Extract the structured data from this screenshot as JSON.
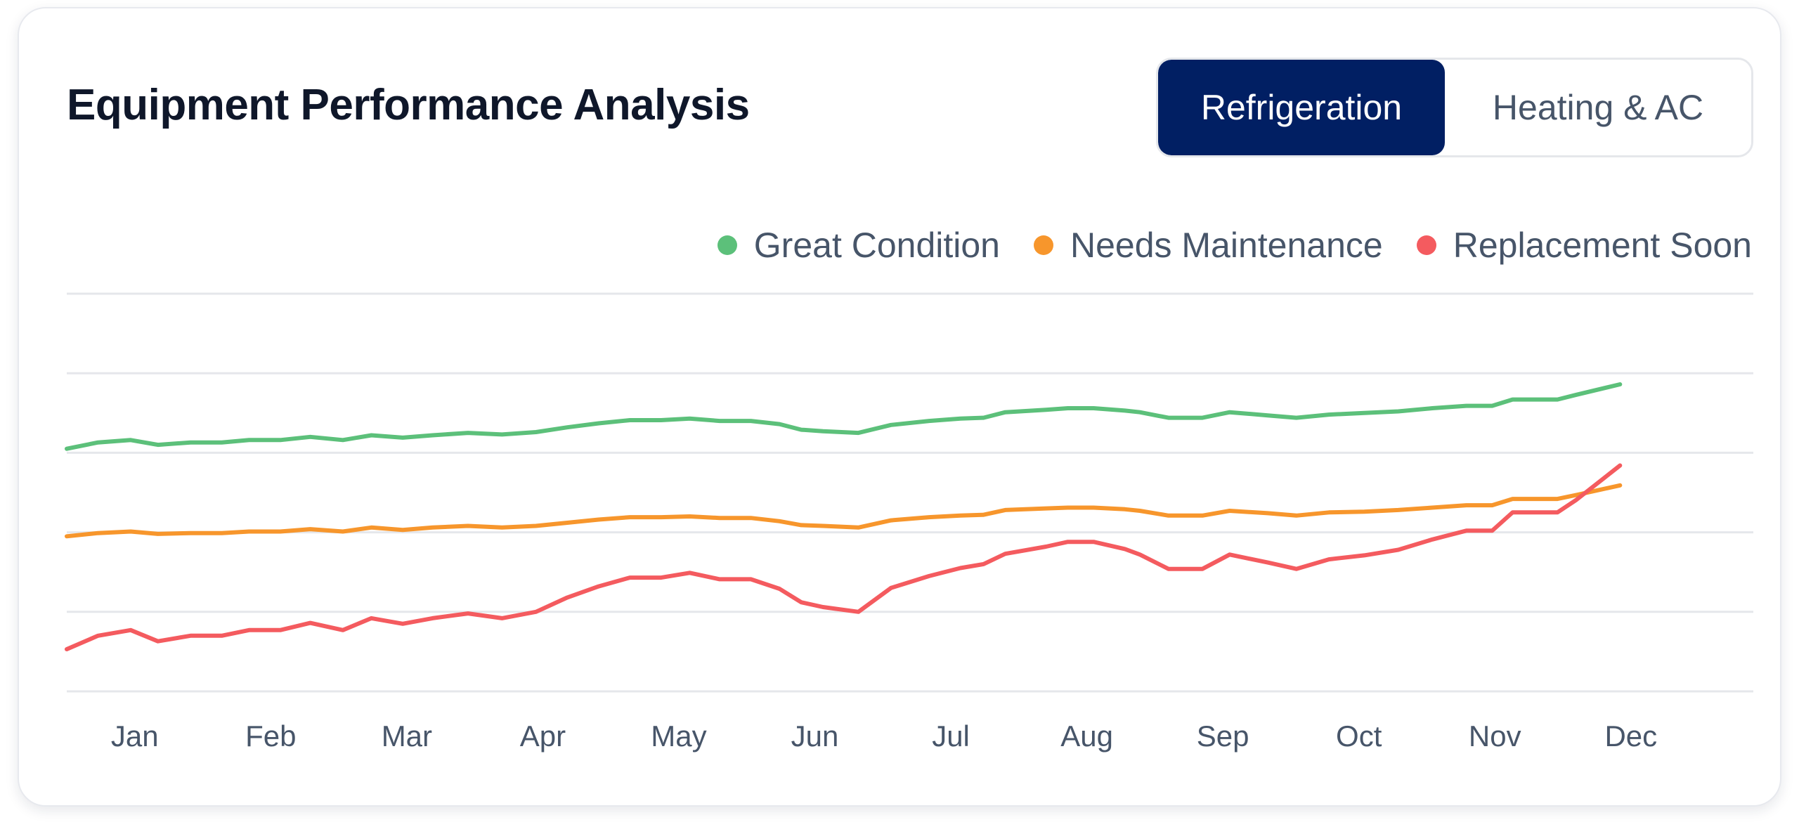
{
  "card": {
    "title": "Equipment Performance Analysis",
    "tabs": [
      {
        "label": "Refrigeration",
        "active": true
      },
      {
        "label": "Heating & AC",
        "active": false
      }
    ]
  },
  "colors": {
    "active_tab": "#011f63",
    "great": "#5cc07a",
    "maintenance": "#f7962c",
    "replacement": "#f45b5f",
    "grid": "#e5e7eb"
  },
  "chart_data": {
    "type": "line",
    "title": "",
    "xlabel": "",
    "ylabel": "",
    "categories": [
      "Jan",
      "Feb",
      "Mar",
      "Apr",
      "May",
      "Jun",
      "Jul",
      "Aug",
      "Sep",
      "Oct",
      "Nov",
      "Dec"
    ],
    "x_ticks": [
      0.5,
      1.5,
      2.5,
      3.5,
      4.5,
      5.5,
      6.5,
      7.5,
      8.5,
      9.5,
      10.5,
      11.5
    ],
    "xlim": [
      0,
      12.4
    ],
    "ylim": [
      0,
      5
    ],
    "grid": true,
    "legend_position": "top-right",
    "x": [
      0,
      0.23,
      0.47,
      0.67,
      0.91,
      1.14,
      1.34,
      1.57,
      1.79,
      2.03,
      2.24,
      2.47,
      2.69,
      2.95,
      3.2,
      3.45,
      3.68,
      3.91,
      4.14,
      4.37,
      4.58,
      4.8,
      5.03,
      5.24,
      5.4,
      5.56,
      5.82,
      6.06,
      6.34,
      6.57,
      6.74,
      6.9,
      7.2,
      7.36,
      7.55,
      7.78,
      7.89,
      8.1,
      8.35,
      8.55,
      8.83,
      9.04,
      9.28,
      9.54,
      9.79,
      10.04,
      10.29,
      10.48,
      10.63,
      10.8,
      10.96,
      11.1,
      11.42
    ],
    "series": [
      {
        "name": "Great Condition",
        "color": "#5cc07a",
        "values": [
          3.05,
          3.13,
          3.16,
          3.1,
          3.13,
          3.13,
          3.16,
          3.16,
          3.2,
          3.16,
          3.22,
          3.19,
          3.22,
          3.25,
          3.23,
          3.26,
          3.32,
          3.37,
          3.41,
          3.41,
          3.43,
          3.4,
          3.4,
          3.36,
          3.29,
          3.27,
          3.25,
          3.35,
          3.4,
          3.43,
          3.44,
          3.51,
          3.54,
          3.56,
          3.56,
          3.53,
          3.51,
          3.44,
          3.44,
          3.51,
          3.47,
          3.44,
          3.48,
          3.5,
          3.52,
          3.56,
          3.59,
          3.59,
          3.67,
          3.67,
          3.67,
          3.73,
          3.86
        ]
      },
      {
        "name": "Needs Maintenance",
        "color": "#f7962c",
        "values": [
          1.95,
          1.99,
          2.01,
          1.98,
          1.99,
          1.99,
          2.01,
          2.01,
          2.04,
          2.01,
          2.06,
          2.03,
          2.06,
          2.08,
          2.06,
          2.08,
          2.12,
          2.16,
          2.19,
          2.19,
          2.2,
          2.18,
          2.18,
          2.14,
          2.09,
          2.08,
          2.06,
          2.15,
          2.19,
          2.21,
          2.22,
          2.28,
          2.3,
          2.31,
          2.31,
          2.29,
          2.27,
          2.21,
          2.21,
          2.27,
          2.24,
          2.21,
          2.25,
          2.26,
          2.28,
          2.31,
          2.34,
          2.34,
          2.42,
          2.42,
          2.42,
          2.47,
          2.59
        ]
      },
      {
        "name": "Replacement Soon",
        "color": "#f45b5f",
        "values": [
          0.53,
          0.7,
          0.77,
          0.63,
          0.7,
          0.7,
          0.77,
          0.77,
          0.86,
          0.77,
          0.92,
          0.85,
          0.92,
          0.98,
          0.92,
          1.0,
          1.18,
          1.32,
          1.43,
          1.43,
          1.49,
          1.41,
          1.41,
          1.29,
          1.12,
          1.06,
          1.0,
          1.3,
          1.45,
          1.55,
          1.6,
          1.73,
          1.82,
          1.88,
          1.88,
          1.79,
          1.72,
          1.54,
          1.54,
          1.72,
          1.62,
          1.54,
          1.66,
          1.71,
          1.78,
          1.91,
          2.02,
          2.02,
          2.25,
          2.25,
          2.25,
          2.41,
          2.84
        ]
      }
    ]
  }
}
